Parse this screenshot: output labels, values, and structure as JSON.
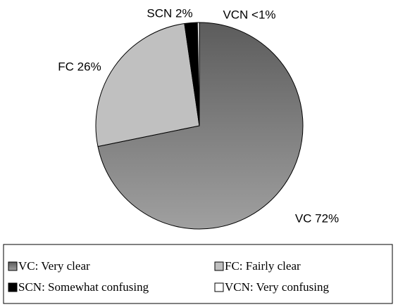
{
  "chart_data": {
    "type": "pie",
    "categories": [
      "VC: Very clear",
      "FC: Fairly clear",
      "SCN: Somewhat confusing",
      "VCN: Very confusing"
    ],
    "values": [
      72,
      26,
      2,
      0.3
    ],
    "value_labels": [
      "VC 72%",
      "FC 26%",
      "SCN 2%",
      "VCN <1%"
    ],
    "colors": [
      "#808080",
      "#c0c0c0",
      "#000000",
      "#ffffff"
    ]
  }
}
